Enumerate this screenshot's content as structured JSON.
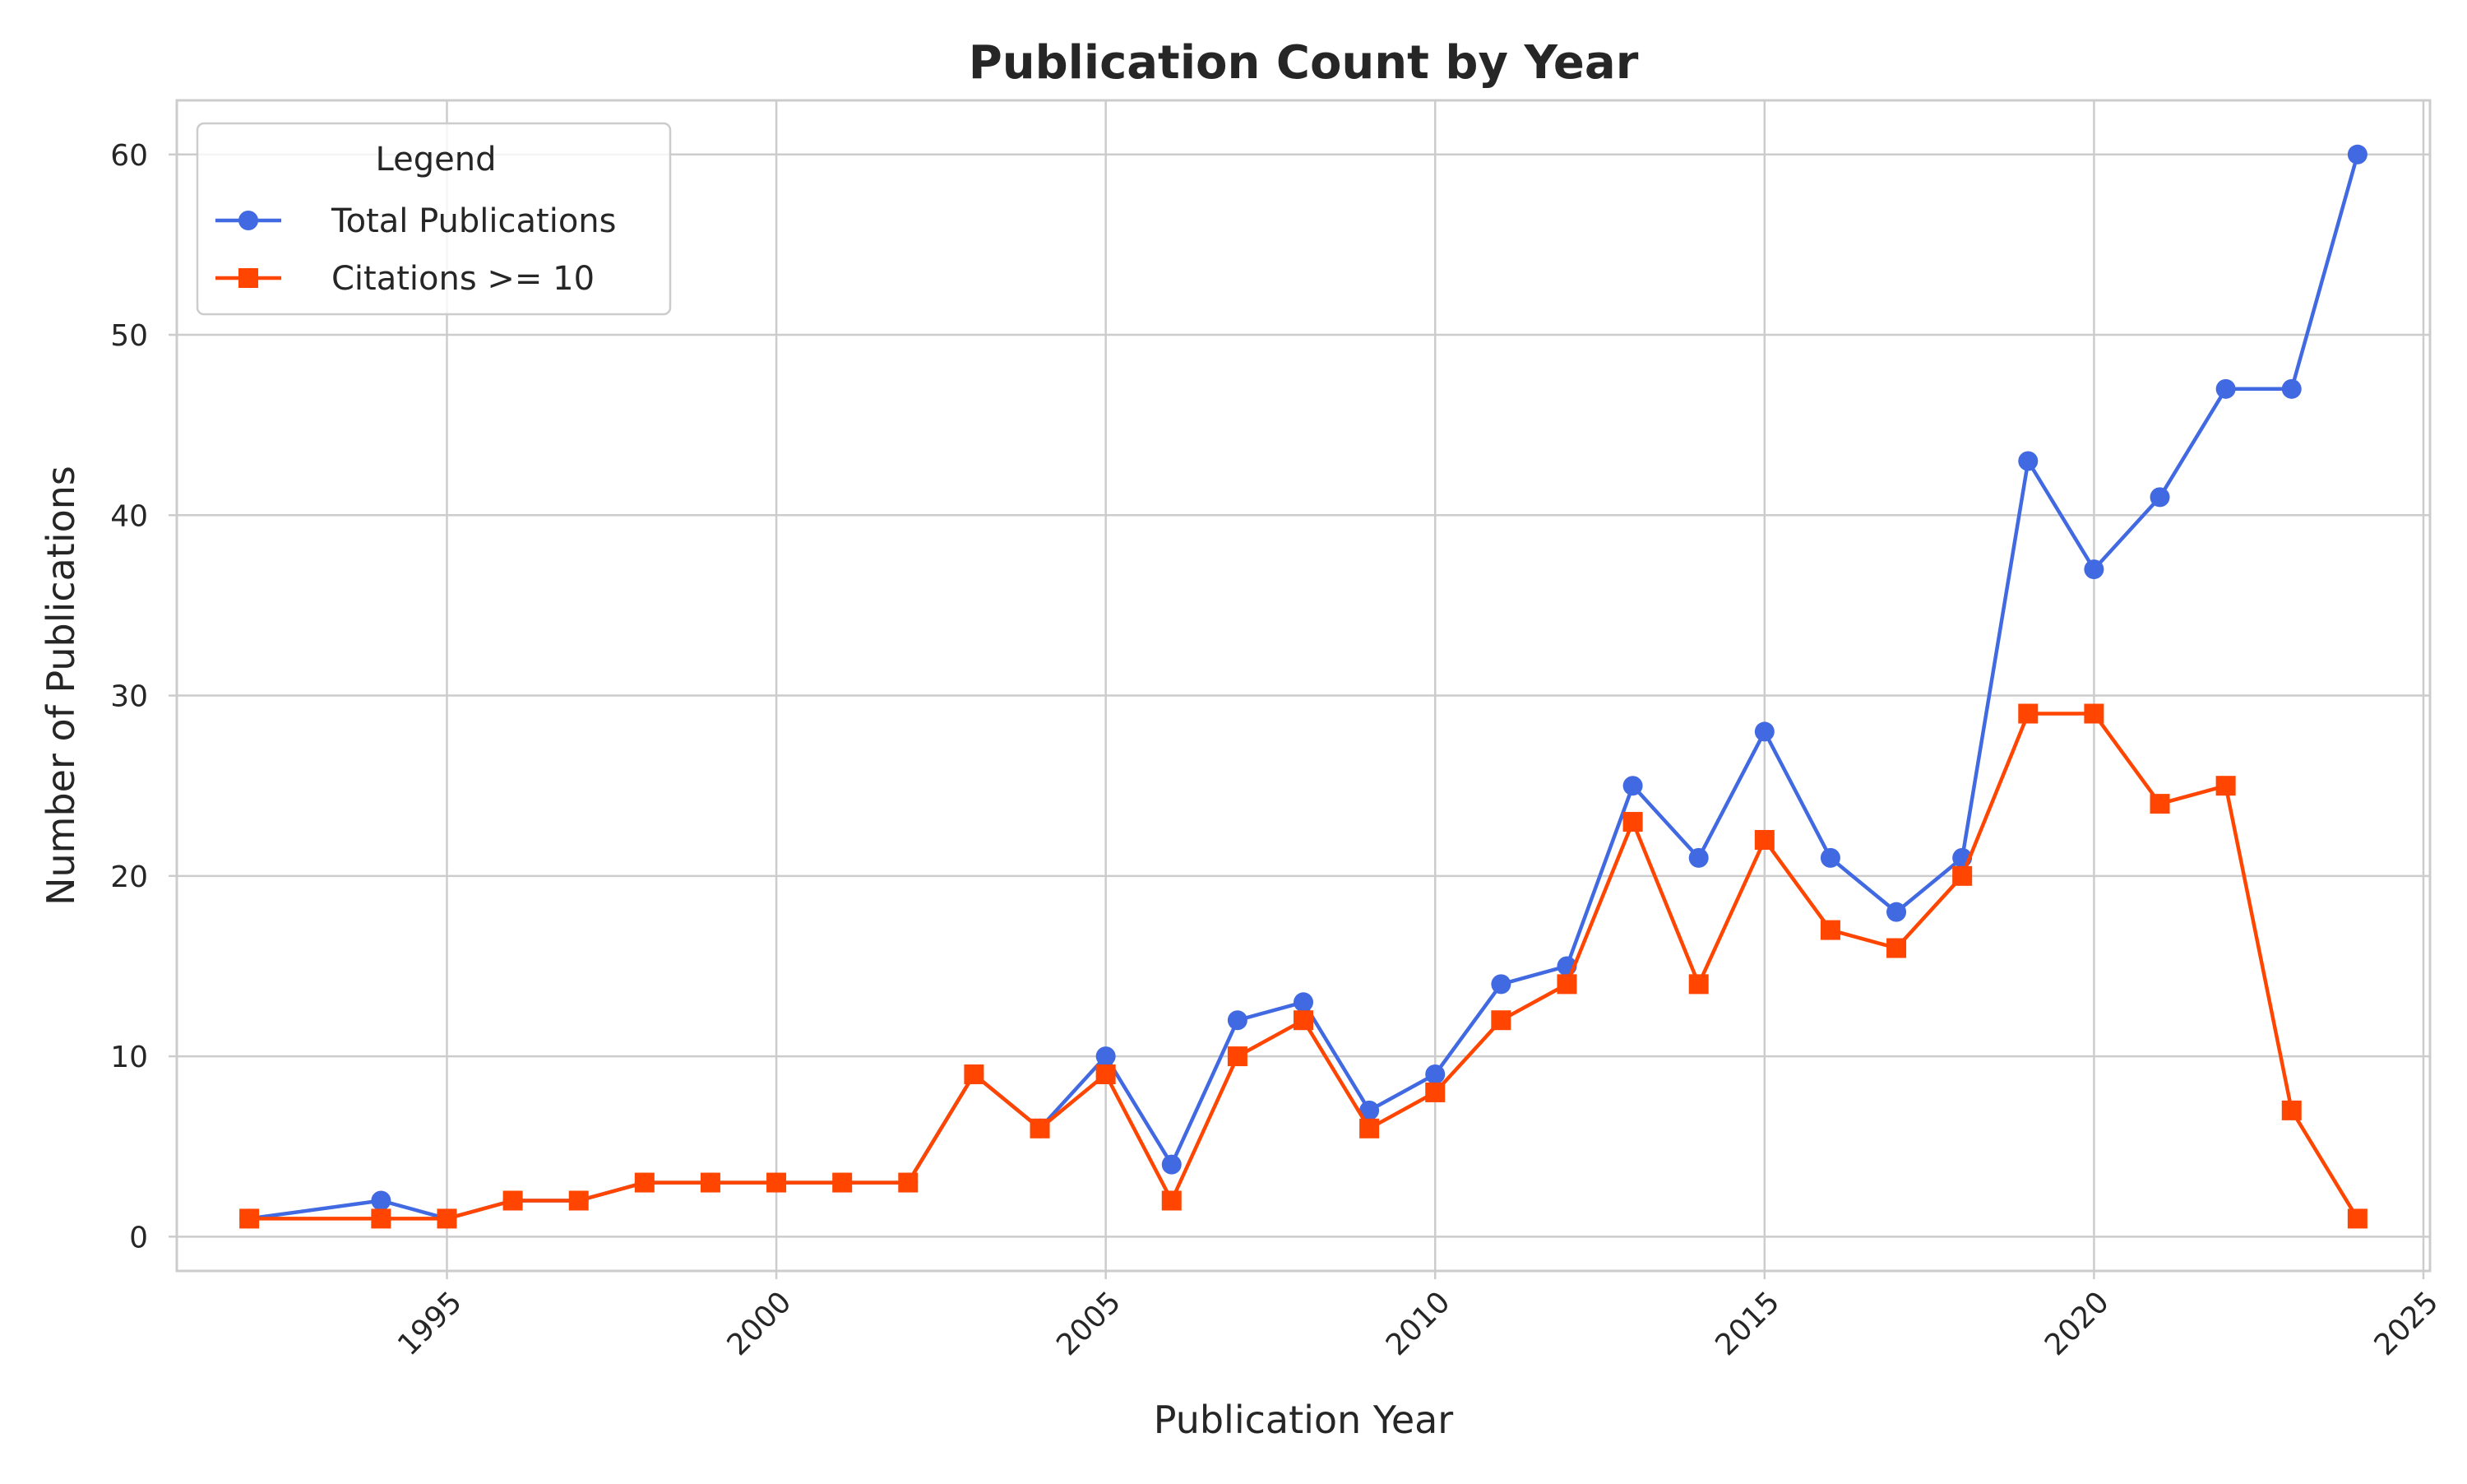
{
  "chart_data": {
    "type": "line",
    "title": "Publication Count by Year",
    "xlabel": "Publication Year",
    "ylabel": "Number of Publications",
    "xlim": [
      1990.9,
      2025.1
    ],
    "ylim": [
      -1.9,
      63
    ],
    "xticks": [
      1995,
      2000,
      2005,
      2010,
      2015,
      2020,
      2025
    ],
    "yticks": [
      0,
      10,
      20,
      30,
      40,
      50,
      60
    ],
    "grid": true,
    "legend": {
      "title": "Legend",
      "placement": "top-left"
    },
    "series": [
      {
        "name": "Total Publications",
        "color": "#4169E1",
        "marker": "circle",
        "points": [
          [
            1992,
            1
          ],
          [
            1994,
            2
          ],
          [
            1995,
            1
          ],
          [
            1996,
            2
          ],
          [
            1997,
            2
          ],
          [
            1998,
            3
          ],
          [
            1999,
            3
          ],
          [
            2000,
            3
          ],
          [
            2001,
            3
          ],
          [
            2002,
            3
          ],
          [
            2003,
            9
          ],
          [
            2004,
            6
          ],
          [
            2005,
            10
          ],
          [
            2006,
            4
          ],
          [
            2007,
            12
          ],
          [
            2008,
            13
          ],
          [
            2009,
            7
          ],
          [
            2010,
            9
          ],
          [
            2011,
            14
          ],
          [
            2012,
            15
          ],
          [
            2013,
            25
          ],
          [
            2014,
            21
          ],
          [
            2015,
            28
          ],
          [
            2016,
            21
          ],
          [
            2017,
            18
          ],
          [
            2018,
            21
          ],
          [
            2019,
            43
          ],
          [
            2020,
            37
          ],
          [
            2021,
            41
          ],
          [
            2022,
            47
          ],
          [
            2023,
            47
          ],
          [
            2024,
            60
          ]
        ]
      },
      {
        "name": "Citations >= 10",
        "color": "#FF4500",
        "marker": "square",
        "points": [
          [
            1992,
            1
          ],
          [
            1994,
            1
          ],
          [
            1995,
            1
          ],
          [
            1996,
            2
          ],
          [
            1997,
            2
          ],
          [
            1998,
            3
          ],
          [
            1999,
            3
          ],
          [
            2000,
            3
          ],
          [
            2001,
            3
          ],
          [
            2002,
            3
          ],
          [
            2003,
            9
          ],
          [
            2004,
            6
          ],
          [
            2005,
            9
          ],
          [
            2006,
            2
          ],
          [
            2007,
            10
          ],
          [
            2008,
            12
          ],
          [
            2009,
            6
          ],
          [
            2010,
            8
          ],
          [
            2011,
            12
          ],
          [
            2012,
            14
          ],
          [
            2013,
            23
          ],
          [
            2014,
            14
          ],
          [
            2015,
            22
          ],
          [
            2016,
            17
          ],
          [
            2017,
            16
          ],
          [
            2018,
            20
          ],
          [
            2019,
            29
          ],
          [
            2020,
            29
          ],
          [
            2021,
            24
          ],
          [
            2022,
            25
          ],
          [
            2023,
            7
          ],
          [
            2024,
            1
          ]
        ]
      }
    ]
  }
}
